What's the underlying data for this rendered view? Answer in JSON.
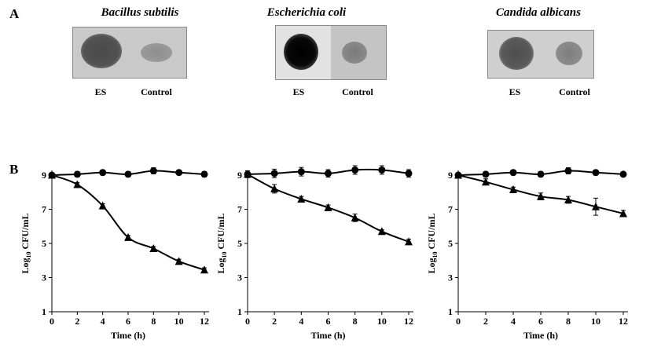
{
  "panel_a": {
    "letter": "A",
    "plates": [
      {
        "organism": "Bacillus subtilis",
        "left_label": "ES",
        "right_label": "Control"
      },
      {
        "organism": "Escherichia coli",
        "left_label": "ES",
        "right_label": "Control"
      },
      {
        "organism": "Candida albicans",
        "left_label": "ES",
        "right_label": "Control"
      }
    ]
  },
  "panel_b": {
    "letter": "B"
  },
  "chart_data": [
    {
      "type": "line",
      "xlabel": "Time (h)",
      "ylabel_main": "Log",
      "ylabel_sub": "10",
      "ylabel_rest": " CFU/mL",
      "xlim": [
        0,
        12
      ],
      "ylim": [
        1,
        9
      ],
      "xticks": [
        0,
        2,
        4,
        6,
        8,
        10,
        12
      ],
      "yticks": [
        1,
        3,
        5,
        7,
        9
      ],
      "series": [
        {
          "marker": "circle",
          "x": [
            0,
            2,
            4,
            6,
            8,
            10,
            12
          ],
          "y": [
            9.0,
            9.05,
            9.15,
            9.05,
            9.25,
            9.15,
            9.05
          ],
          "err": [
            0.12,
            0.15,
            0.15,
            0.15,
            0.18,
            0.1,
            0.15
          ]
        },
        {
          "marker": "triangle",
          "x": [
            0,
            2,
            4,
            6,
            8,
            10,
            12
          ],
          "y": [
            9.0,
            8.45,
            7.2,
            5.35,
            4.7,
            3.95,
            3.45
          ],
          "err": [
            0.08,
            0.12,
            0.12,
            0.12,
            0.12,
            0.12,
            0.12
          ]
        }
      ]
    },
    {
      "type": "line",
      "xlabel": "Time (h)",
      "ylabel_main": "Log",
      "ylabel_sub": "10",
      "ylabel_rest": " CFU/mL",
      "xlim": [
        0,
        12
      ],
      "ylim": [
        1,
        9
      ],
      "xticks": [
        0,
        2,
        4,
        6,
        8,
        10,
        12
      ],
      "yticks": [
        1,
        3,
        5,
        7,
        9
      ],
      "series": [
        {
          "marker": "circle",
          "x": [
            0,
            2,
            4,
            6,
            8,
            10,
            12
          ],
          "y": [
            9.05,
            9.1,
            9.2,
            9.1,
            9.3,
            9.3,
            9.1
          ],
          "err": [
            0.2,
            0.25,
            0.25,
            0.22,
            0.25,
            0.25,
            0.22
          ]
        },
        {
          "marker": "triangle",
          "x": [
            0,
            2,
            4,
            6,
            8,
            10,
            12
          ],
          "y": [
            9.05,
            8.2,
            7.6,
            7.1,
            6.5,
            5.7,
            5.1
          ],
          "err": [
            0.1,
            0.25,
            0.15,
            0.15,
            0.22,
            0.1,
            0.15
          ]
        }
      ]
    },
    {
      "type": "line",
      "xlabel": "Time (h)",
      "ylabel_main": "Log",
      "ylabel_sub": "10",
      "ylabel_rest": " CFU/mL",
      "xlim": [
        0,
        12
      ],
      "ylim": [
        1,
        9
      ],
      "xticks": [
        0,
        2,
        4,
        6,
        8,
        10,
        12
      ],
      "yticks": [
        1,
        3,
        5,
        7,
        9
      ],
      "series": [
        {
          "marker": "circle",
          "x": [
            0,
            2,
            4,
            6,
            8,
            10,
            12
          ],
          "y": [
            9.0,
            9.05,
            9.15,
            9.05,
            9.25,
            9.15,
            9.05
          ],
          "err": [
            0.12,
            0.15,
            0.15,
            0.15,
            0.18,
            0.15,
            0.12
          ]
        },
        {
          "marker": "triangle",
          "x": [
            0,
            2,
            4,
            6,
            8,
            10,
            12
          ],
          "y": [
            9.0,
            8.6,
            8.15,
            7.75,
            7.55,
            7.15,
            6.75
          ],
          "err": [
            0.1,
            0.18,
            0.15,
            0.2,
            0.2,
            0.5,
            0.18
          ]
        }
      ]
    }
  ]
}
